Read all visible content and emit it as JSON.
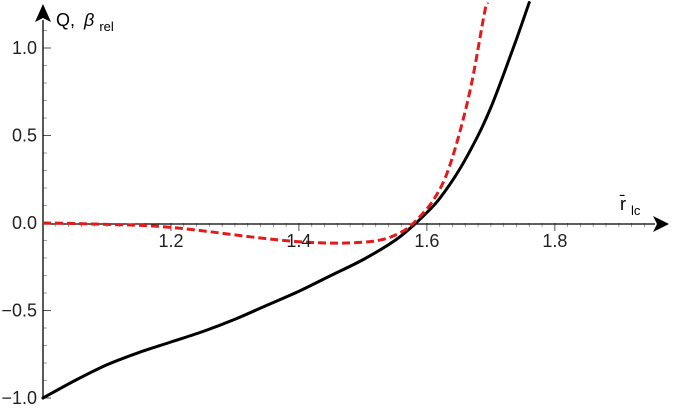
{
  "chart_data": {
    "type": "line",
    "title": "",
    "xlabel": "r̄",
    "xlabel_sub": "lc",
    "ylabel_main": "Q,",
    "ylabel_beta": "β",
    "ylabel_sub": "rel",
    "xlim": [
      1.0,
      1.98
    ],
    "ylim": [
      -1.0,
      1.25
    ],
    "x_ticks": [
      1.2,
      1.4,
      1.6,
      1.8
    ],
    "x_tick_labels": [
      "1.2",
      "1.4",
      "1.6",
      "1.8"
    ],
    "y_ticks": [
      1.0,
      0.5,
      0.0,
      -0.5,
      -1.0
    ],
    "y_tick_labels": [
      "1.0",
      "0.5",
      "0.0",
      "−0.5",
      "−1.0"
    ],
    "grid": false,
    "series": [
      {
        "color": "#000000",
        "style": "solid",
        "points": [
          [
            1.0,
            -1.0
          ],
          [
            1.05,
            -0.9
          ],
          [
            1.1,
            -0.81
          ],
          [
            1.15,
            -0.74
          ],
          [
            1.2,
            -0.68
          ],
          [
            1.25,
            -0.62
          ],
          [
            1.3,
            -0.55
          ],
          [
            1.35,
            -0.47
          ],
          [
            1.4,
            -0.39
          ],
          [
            1.45,
            -0.3
          ],
          [
            1.5,
            -0.21
          ],
          [
            1.55,
            -0.1
          ],
          [
            1.58,
            -0.01
          ],
          [
            1.6,
            0.06
          ],
          [
            1.62,
            0.14
          ],
          [
            1.65,
            0.3
          ],
          [
            1.68,
            0.5
          ],
          [
            1.7,
            0.66
          ],
          [
            1.72,
            0.85
          ],
          [
            1.74,
            1.05
          ],
          [
            1.76,
            1.26
          ]
        ]
      },
      {
        "color": "#e31a1c",
        "style": "dashed",
        "points": [
          [
            1.0,
            0.0
          ],
          [
            1.05,
            -0.003
          ],
          [
            1.1,
            -0.008
          ],
          [
            1.15,
            -0.013
          ],
          [
            1.2,
            -0.025
          ],
          [
            1.25,
            -0.045
          ],
          [
            1.3,
            -0.068
          ],
          [
            1.35,
            -0.09
          ],
          [
            1.4,
            -0.107
          ],
          [
            1.45,
            -0.115
          ],
          [
            1.5,
            -0.11
          ],
          [
            1.53,
            -0.095
          ],
          [
            1.55,
            -0.07
          ],
          [
            1.57,
            -0.03
          ],
          [
            1.59,
            0.04
          ],
          [
            1.61,
            0.13
          ],
          [
            1.63,
            0.27
          ],
          [
            1.65,
            0.5
          ],
          [
            1.67,
            0.8
          ],
          [
            1.69,
            1.2
          ],
          [
            1.695,
            1.26
          ]
        ]
      }
    ]
  }
}
